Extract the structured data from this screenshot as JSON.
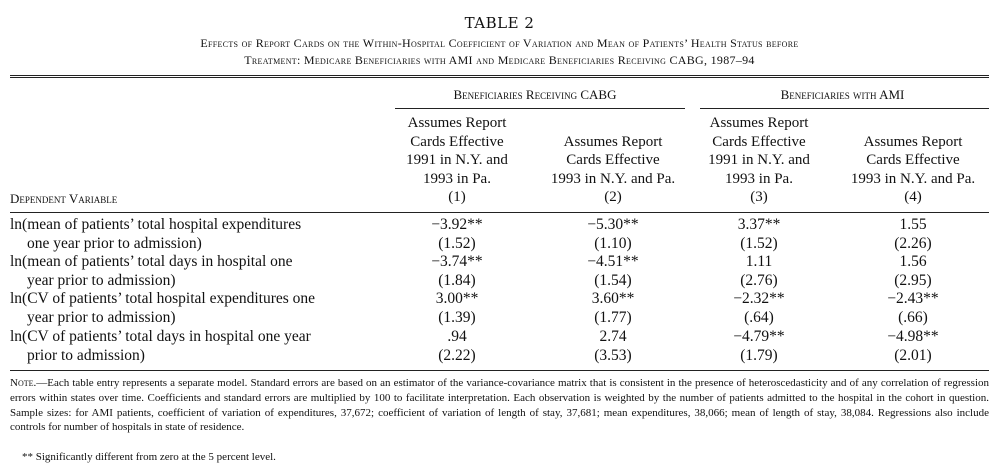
{
  "table": {
    "number": "TABLE 2",
    "caption_line1": "Effects of Report Cards on the Within-Hospital Coefficient of Variation and Mean of Patients’ Health Status before",
    "caption_line2": "Treatment: Medicare Beneficiaries with AMI and Medicare Beneficiaries Receiving CABG, 1987–94",
    "group_headers": [
      "Beneficiaries Receiving CABG",
      "Beneficiaries with AMI"
    ],
    "dependent_variable_label": "Dependent Variable",
    "columns": [
      {
        "lines": [
          "Assumes Report",
          "Cards Effective",
          "1991 in N.Y. and",
          "1993 in Pa."
        ],
        "number": "(1)"
      },
      {
        "lines": [
          "Assumes Report",
          "Cards Effective",
          "1993 in N.Y. and Pa."
        ],
        "number": "(2)"
      },
      {
        "lines": [
          "Assumes Report",
          "Cards Effective",
          "1991 in N.Y. and",
          "1993 in Pa."
        ],
        "number": "(3)"
      },
      {
        "lines": [
          "Assumes Report",
          "Cards Effective",
          "1993 in N.Y. and Pa."
        ],
        "number": "(4)"
      }
    ],
    "rows": [
      {
        "label_line1": "ln(mean of patients’ total hospital expenditures",
        "label_line2": "one year prior to admission)",
        "coef": [
          "−3.92**",
          "−5.30**",
          "3.37**",
          "1.55"
        ],
        "se": [
          "(1.52)",
          "(1.10)",
          "(1.52)",
          "(2.26)"
        ]
      },
      {
        "label_line1": "ln(mean of patients’ total days in hospital one",
        "label_line2": "year prior to admission)",
        "coef": [
          "−3.74**",
          "−4.51**",
          "1.11",
          "1.56"
        ],
        "se": [
          "(1.84)",
          "(1.54)",
          "(2.76)",
          "(2.95)"
        ]
      },
      {
        "label_line1": "ln(CV of patients’ total hospital expenditures one",
        "label_line2": "year prior to admission)",
        "coef": [
          "3.00**",
          "3.60**",
          "−2.32**",
          "−2.43**"
        ],
        "se": [
          "(1.39)",
          "(1.77)",
          "(.64)",
          "(.66)"
        ]
      },
      {
        "label_line1": "ln(CV of patients’ total days in hospital one year",
        "label_line2": "prior to admission)",
        "coef": [
          ".94",
          "2.74",
          "−4.79**",
          "−4.98**"
        ],
        "se": [
          "(2.22)",
          "(3.53)",
          "(1.79)",
          "(2.01)"
        ]
      }
    ],
    "note_label": "Note.",
    "note_text": "—Each table entry represents a separate model. Standard errors are based on an estimator of the variance-covariance matrix that is consistent in the presence of heteroscedasticity and of any correlation of regression errors within states over time. Coefficients and standard errors are multiplied by 100 to facilitate interpretation. Each observation is weighted by the number of patients admitted to the hospital in the cohort in question. Sample sizes: for AMI patients, coefficient of variation of expenditures, 37,672; coefficient of variation of length of stay, 37,681; mean expenditures, 38,066; mean of length of stay, 38,084. Regressions also include controls for number of hospitals in state of residence.",
    "significance_note": "** Significantly different from zero at the 5 percent level."
  }
}
